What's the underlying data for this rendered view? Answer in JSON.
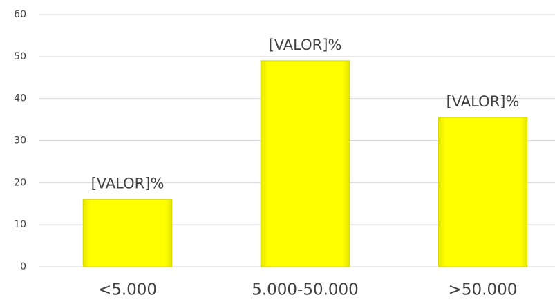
{
  "chart_data": {
    "type": "bar",
    "categories": [
      "<5.000",
      "5.000-50.000",
      ">50.000"
    ],
    "values": [
      16,
      49,
      35.5
    ],
    "value_labels": [
      "[VALOR]%",
      "[VALOR]%",
      "[VALOR]%"
    ],
    "color": "#ffff00",
    "ylim": [
      0,
      60
    ],
    "yticks": [
      0,
      10,
      20,
      30,
      40,
      50,
      60
    ],
    "grid": true
  }
}
